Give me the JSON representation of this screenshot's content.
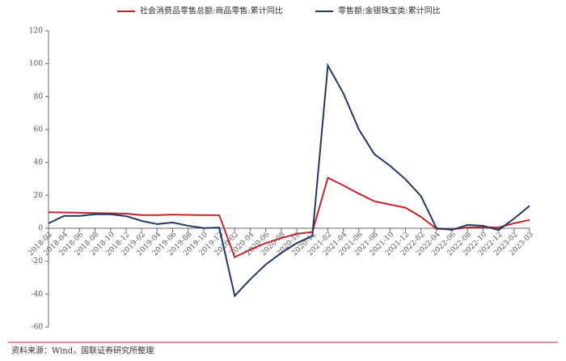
{
  "chart_data": {
    "type": "line",
    "categories": [
      "2018-02",
      "2018-04",
      "2018-06",
      "2018-08",
      "2018-10",
      "2018-12",
      "2019-02",
      "2019-04",
      "2019-06",
      "2019-08",
      "2019-10",
      "2019-12",
      "2020-02",
      "2020-04",
      "2020-06",
      "2020-08",
      "2020-10",
      "2020-12",
      "2021-02",
      "2021-04",
      "2021-06",
      "2021-08",
      "2021-10",
      "2021-12",
      "2022-02",
      "2022-04",
      "2022-06",
      "2022-08",
      "2022-10",
      "2022-12",
      "2023-02",
      "2023-03"
    ],
    "series": [
      {
        "name": "社会消费品零售总额:商品零售:累计同比",
        "color": "#c0272d",
        "values": [
          9.7,
          9.6,
          9.4,
          9.2,
          9.1,
          8.9,
          8.0,
          8.0,
          8.3,
          8.1,
          8.0,
          7.9,
          -17.6,
          -13,
          -9,
          -6,
          -3.4,
          -2.3,
          30.7,
          26,
          21,
          16.4,
          14.4,
          12.5,
          6.9,
          -0.3,
          -0.7,
          0.5,
          0.6,
          0.5,
          3,
          5
        ]
      },
      {
        "name": "零售额:金银珠宝类:累计同比",
        "color": "#1f3864",
        "values": [
          3,
          7.5,
          7.5,
          8.5,
          8.5,
          7.4,
          4.5,
          2.5,
          3.5,
          1.5,
          0.1,
          0.4,
          -41.1,
          -31,
          -22,
          -15,
          -9,
          -4.7,
          98.9,
          82,
          60,
          45,
          38,
          29.8,
          19.5,
          0,
          -1,
          2,
          1.5,
          -1.1,
          5.9,
          13.6
        ]
      }
    ],
    "ylim": [
      -60,
      120
    ],
    "yticks": [
      -60,
      -40,
      -20,
      0,
      20,
      40,
      60,
      80,
      100,
      120
    ],
    "source": "资料来源：Wind，国联证券研究所整理"
  }
}
